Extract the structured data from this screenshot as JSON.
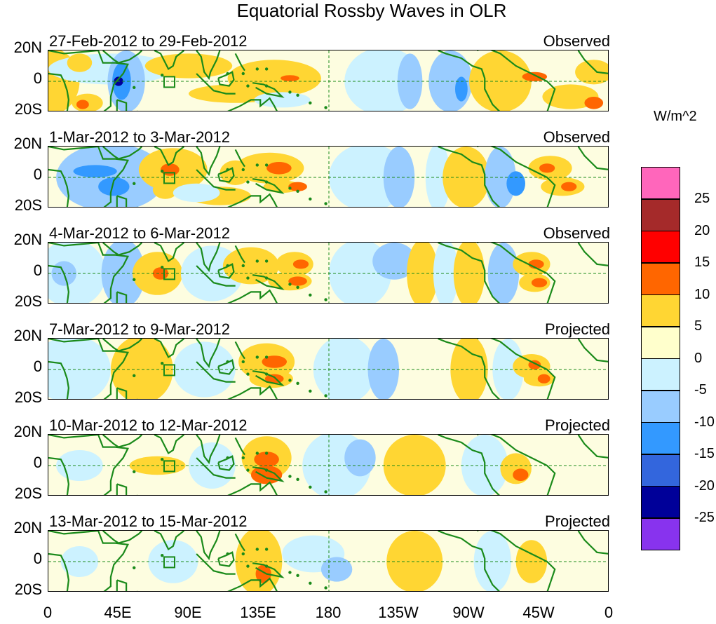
{
  "title": "Equatorial Rossby Waves in OLR",
  "panels": [
    {
      "date": "27-Feb-2012 to 29-Feb-2012",
      "kind": "Observed"
    },
    {
      "date": "1-Mar-2012 to 3-Mar-2012",
      "kind": "Observed"
    },
    {
      "date": "4-Mar-2012 to 6-Mar-2012",
      "kind": "Observed"
    },
    {
      "date": "7-Mar-2012 to 9-Mar-2012",
      "kind": "Projected"
    },
    {
      "date": "10-Mar-2012 to 12-Mar-2012",
      "kind": "Projected"
    },
    {
      "date": "13-Mar-2012 to 15-Mar-2012",
      "kind": "Projected"
    }
  ],
  "lat_labels": [
    "20N",
    "0",
    "20S"
  ],
  "lon_labels": [
    "0",
    "45E",
    "90E",
    "135E",
    "180",
    "135W",
    "90W",
    "45W",
    "0"
  ],
  "colorbar": {
    "units": "W/m^2",
    "colors": [
      "#ff66bb",
      "#a52a2a",
      "#ff0000",
      "#ff6600",
      "#ffd633",
      "#ffffcc",
      "#ccf2ff",
      "#99ccff",
      "#3399ff",
      "#3366dd",
      "#000099",
      "#8833ee"
    ],
    "labels": [
      "25",
      "20",
      "15",
      "10",
      "5",
      "0",
      "-5",
      "-10",
      "-15",
      "-20",
      "-25"
    ]
  },
  "anomaly_palette": {
    "pos1": "#ffd633",
    "pos2": "#ff6600",
    "neg1": "#ccf2ff",
    "neg2": "#99ccff",
    "neg3": "#3399ff",
    "neg4": "#000099",
    "coast": "#1a8a1a"
  }
}
